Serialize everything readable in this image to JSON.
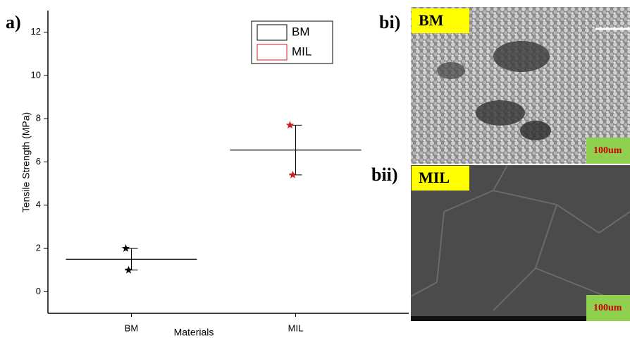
{
  "chart_data": {
    "type": "scatter",
    "x_label": "Materials",
    "y_label": "Tensile Strength (MPa)",
    "categories": [
      "BM",
      "MIL"
    ],
    "series": [
      {
        "name": "BM",
        "color": "#000000",
        "values": [
          2.0,
          1.0
        ],
        "mean": 1.5
      },
      {
        "name": "MIL",
        "color": "#cc1f1f",
        "values": [
          7.7,
          5.4
        ],
        "mean": 6.55
      }
    ],
    "ylim": [
      -1,
      13
    ],
    "yticks": [
      0,
      2,
      4,
      6,
      8,
      10,
      12
    ]
  },
  "panels": {
    "a": "a)",
    "bi": "bi)",
    "bii": "bii)",
    "bi_tag": "BM",
    "bii_tag": "MIL",
    "bi_scale": "100um",
    "bii_scale": "100um"
  }
}
